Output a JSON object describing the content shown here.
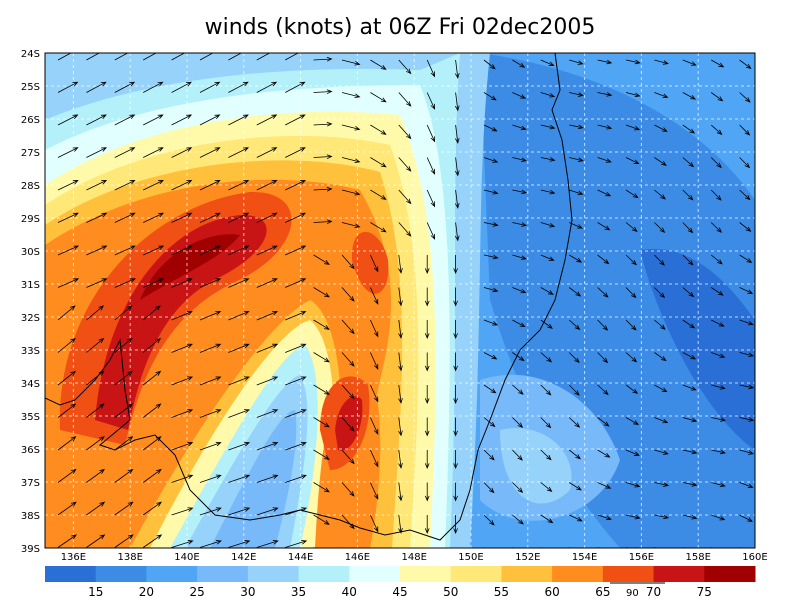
{
  "title": "winds (knots) at 06Z Fri 02dec2005",
  "lat_labels": [
    "24S",
    "25S",
    "26S",
    "27S",
    "28S",
    "29S",
    "30S",
    "31S",
    "32S",
    "33S",
    "34S",
    "35S",
    "36S",
    "37S",
    "38S",
    "39S"
  ],
  "lon_labels": [
    "136E",
    "138E",
    "140E",
    "142E",
    "144E",
    "146E",
    "148E",
    "150E",
    "152E",
    "154E",
    "156E",
    "158E",
    "160E"
  ],
  "colorbar": {
    "labels": [
      15,
      20,
      25,
      30,
      35,
      40,
      45,
      50,
      55,
      60,
      65,
      70,
      75
    ],
    "colors": [
      "#2a6fd6",
      "#3c8ce6",
      "#50a5f5",
      "#78b9fa",
      "#96d2fa",
      "#b4f0fa",
      "#e1ffff",
      "#fffaaa",
      "#ffe878",
      "#ffc03c",
      "#ff8c1e",
      "#f05014",
      "#c81414",
      "#a00000"
    ]
  },
  "reference_vector": "90"
}
